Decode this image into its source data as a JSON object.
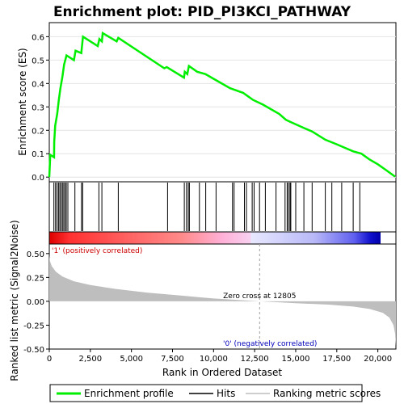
{
  "colors": {
    "es_line": "#00ee00",
    "hits": "#000000",
    "metric_fill": "#bebebe",
    "pos_label": "#cc0000",
    "neg_label": "#0000bb",
    "zero_cross_line": "#a0a0a0"
  },
  "chart_data": {
    "type": "line",
    "title": "Enrichment plot: PID_PI3KCI_PATHWAY",
    "n_genes": 21100,
    "x_ticks": [
      0,
      2500,
      5000,
      7500,
      10000,
      12500,
      15000,
      17500,
      20000
    ],
    "x_tick_labels": [
      "0",
      "2,500",
      "5,000",
      "7,500",
      "10,000",
      "12,500",
      "15,000",
      "17,500",
      "20,000"
    ],
    "xlabel": "Rank in Ordered Dataset",
    "panels": {
      "es": {
        "ylabel": "Enrichment score (ES)",
        "ylim": [
          -0.02,
          0.66
        ],
        "y_ticks": [
          0.0,
          0.1,
          0.2,
          0.3,
          0.4,
          0.5,
          0.6
        ],
        "y_tick_labels": [
          "0.0",
          "0.1",
          "0.2",
          "0.3",
          "0.4",
          "0.5",
          "0.6"
        ],
        "series": [
          {
            "label": "Enrichment profile",
            "points": [
              [
                0,
                0.0
              ],
              [
                60,
                0.095
              ],
              [
                290,
                0.085
              ],
              [
                300,
                0.15
              ],
              [
                360,
                0.22
              ],
              [
                480,
                0.27
              ],
              [
                580,
                0.33
              ],
              [
                680,
                0.38
              ],
              [
                800,
                0.43
              ],
              [
                900,
                0.48
              ],
              [
                1050,
                0.52
              ],
              [
                1500,
                0.5
              ],
              [
                1600,
                0.54
              ],
              [
                1950,
                0.53
              ],
              [
                2050,
                0.6
              ],
              [
                2950,
                0.56
              ],
              [
                3050,
                0.59
              ],
              [
                3200,
                0.58
              ],
              [
                3250,
                0.615
              ],
              [
                4100,
                0.58
              ],
              [
                4200,
                0.595
              ],
              [
                7000,
                0.465
              ],
              [
                7150,
                0.47
              ],
              [
                8200,
                0.425
              ],
              [
                8250,
                0.45
              ],
              [
                8400,
                0.44
              ],
              [
                8500,
                0.475
              ],
              [
                9000,
                0.45
              ],
              [
                9500,
                0.44
              ],
              [
                10000,
                0.42
              ],
              [
                11000,
                0.38
              ],
              [
                11200,
                0.375
              ],
              [
                11800,
                0.36
              ],
              [
                12000,
                0.35
              ],
              [
                12400,
                0.33
              ],
              [
                13000,
                0.31
              ],
              [
                14000,
                0.27
              ],
              [
                14400,
                0.245
              ],
              [
                14700,
                0.235
              ],
              [
                15500,
                0.21
              ],
              [
                16000,
                0.195
              ],
              [
                16800,
                0.16
              ],
              [
                17500,
                0.14
              ],
              [
                18000,
                0.125
              ],
              [
                18500,
                0.11
              ],
              [
                19000,
                0.1
              ],
              [
                19500,
                0.075
              ],
              [
                20000,
                0.055
              ],
              [
                20500,
                0.03
              ],
              [
                21050,
                0.002
              ]
            ]
          }
        ]
      },
      "hits": {
        "label": "Hits",
        "positions": [
          280,
          380,
          470,
          560,
          640,
          720,
          800,
          880,
          960,
          1040,
          1130,
          1560,
          1960,
          2030,
          3020,
          3200,
          4200,
          7200,
          8220,
          8350,
          8460,
          8530,
          9140,
          9520,
          10150,
          11150,
          11250,
          11880,
          12000,
          12350,
          12470,
          12800,
          13150,
          13800,
          14350,
          14480,
          14560,
          14650,
          14700,
          15000,
          15500,
          16000,
          16800,
          17200,
          17800,
          18500,
          18900
        ]
      },
      "ranking_metric": {
        "label": "Ranking metric scores",
        "ylabel": "Ranked list metric (Signal2Noise)",
        "ylim": [
          -0.5,
          0.6
        ],
        "y_ticks": [
          -0.5,
          -0.25,
          0.0,
          0.25,
          0.5
        ],
        "y_tick_labels": [
          "-0.50",
          "-0.25",
          "0.00",
          "0.25",
          "0.50"
        ],
        "points": [
          [
            0,
            0.48
          ],
          [
            40,
            0.42
          ],
          [
            150,
            0.37
          ],
          [
            400,
            0.31
          ],
          [
            800,
            0.26
          ],
          [
            1500,
            0.21
          ],
          [
            2500,
            0.17
          ],
          [
            4000,
            0.13
          ],
          [
            6000,
            0.09
          ],
          [
            8000,
            0.06
          ],
          [
            10000,
            0.03
          ],
          [
            12805,
            0.0
          ],
          [
            15000,
            -0.02
          ],
          [
            17000,
            -0.035
          ],
          [
            18500,
            -0.055
          ],
          [
            19500,
            -0.08
          ],
          [
            20300,
            -0.12
          ],
          [
            20700,
            -0.17
          ],
          [
            20950,
            -0.25
          ],
          [
            21050,
            -0.34
          ],
          [
            21100,
            -0.47
          ]
        ],
        "zero_cross": 12805,
        "zero_cross_label": "Zero cross at 12805",
        "pos_label": "'1' (positively correlated)",
        "neg_label": "'0' (negatively correlated)"
      }
    },
    "legend": {
      "placement": "bottom",
      "items": [
        {
          "label": "Enrichment profile",
          "marker": "line",
          "color": "#00ee00"
        },
        {
          "label": "Hits",
          "marker": "line",
          "color": "#000000"
        },
        {
          "label": "Ranking metric scores",
          "marker": "line",
          "color": "#bebebe"
        }
      ]
    }
  }
}
